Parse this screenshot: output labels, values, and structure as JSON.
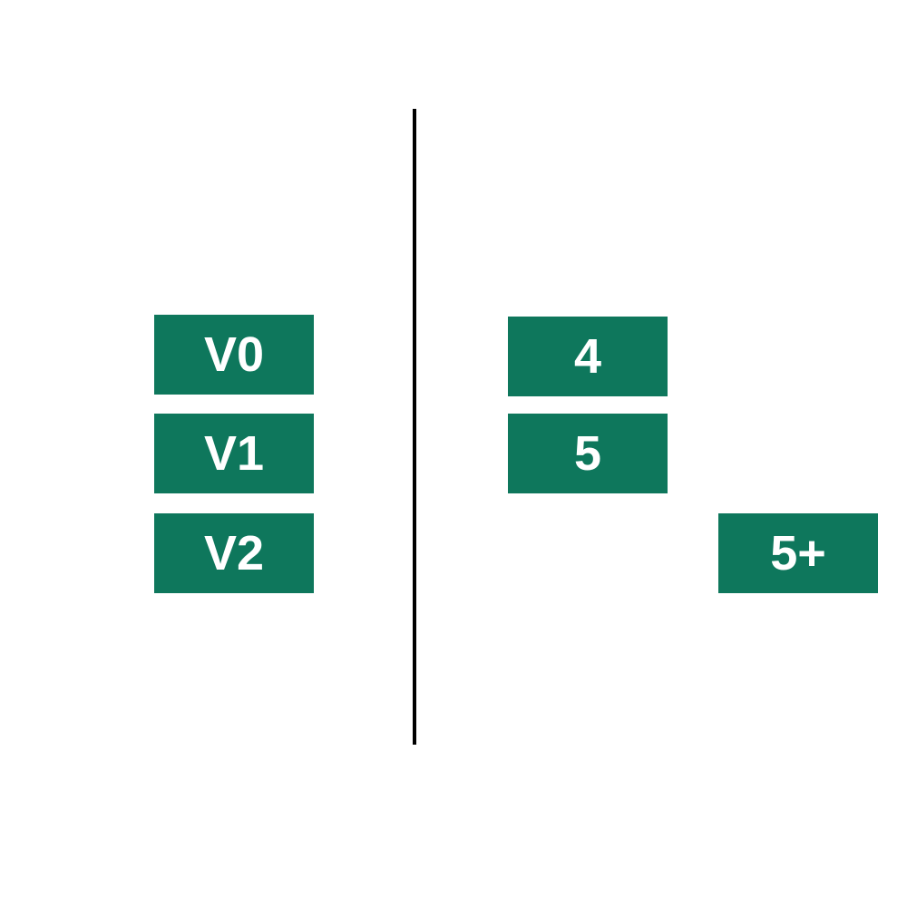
{
  "colors": {
    "tile_fill": "#0e775c",
    "tile_text": "#ffffff",
    "divider": "#000000",
    "background": "#ffffff"
  },
  "left_column": {
    "tiles": [
      {
        "label": "V0"
      },
      {
        "label": "V1"
      },
      {
        "label": "V2"
      }
    ]
  },
  "right_column": {
    "tiles": [
      {
        "label": "4"
      },
      {
        "label": "5"
      },
      {
        "label": "5+"
      }
    ]
  }
}
